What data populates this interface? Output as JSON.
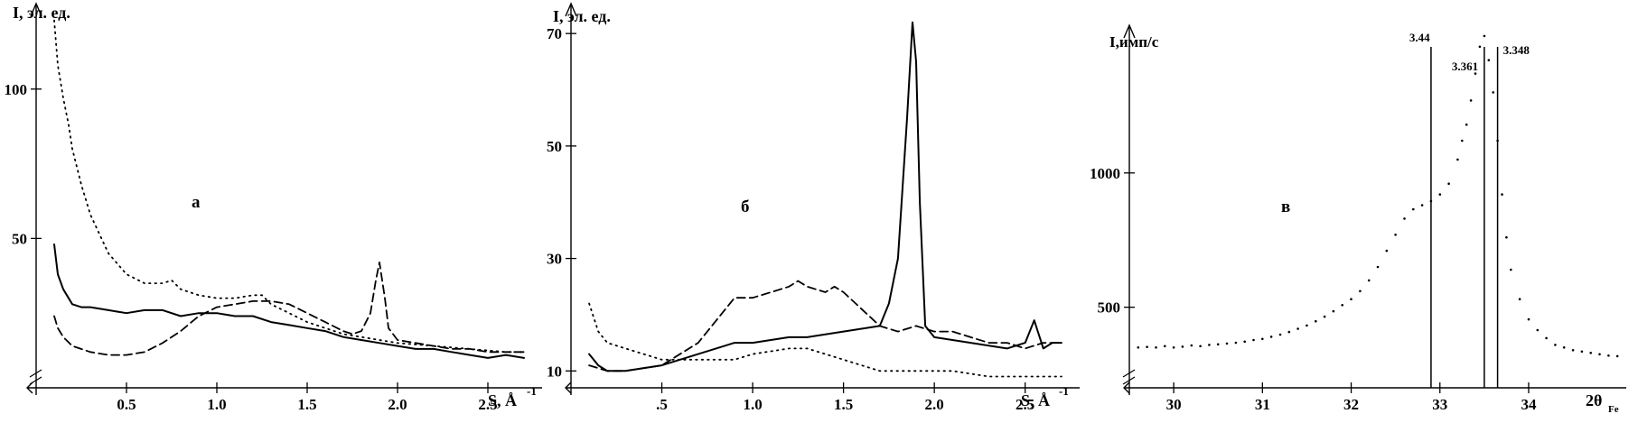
{
  "chart_data": [
    {
      "type": "line",
      "panel_label": "а",
      "ylabel": "I, эл. ед.",
      "xlabel": "S, Å",
      "xlabel_sup": "-1",
      "xlim": [
        0,
        2.8
      ],
      "ylim": [
        0,
        128
      ],
      "xticks": [
        0.5,
        1.0,
        1.5,
        2.0,
        2.5
      ],
      "xtick_labels": [
        "0.5",
        "1.0",
        "1.5",
        "2.0",
        "2.5"
      ],
      "yticks": [
        50,
        100
      ],
      "ytick_labels": [
        "50",
        "100"
      ],
      "series": [
        {
          "style": "solid",
          "x": [
            0.1,
            0.12,
            0.15,
            0.2,
            0.25,
            0.3,
            0.4,
            0.5,
            0.6,
            0.7,
            0.8,
            0.9,
            1.0,
            1.1,
            1.2,
            1.3,
            1.4,
            1.5,
            1.6,
            1.7,
            1.8,
            1.9,
            2.0,
            2.1,
            2.2,
            2.3,
            2.4,
            2.5,
            2.6,
            2.7
          ],
          "y": [
            48,
            38,
            33,
            28,
            27,
            27,
            26,
            25,
            26,
            26,
            24,
            25,
            25,
            24,
            24,
            22,
            21,
            20,
            19,
            17,
            16,
            15,
            14,
            13,
            13,
            12,
            11,
            10,
            11,
            10
          ]
        },
        {
          "style": "dashed",
          "x": [
            0.1,
            0.12,
            0.15,
            0.2,
            0.3,
            0.4,
            0.5,
            0.6,
            0.7,
            0.8,
            0.9,
            1.0,
            1.1,
            1.2,
            1.3,
            1.4,
            1.5,
            1.6,
            1.7,
            1.75,
            1.8,
            1.85,
            1.88,
            1.9,
            1.93,
            1.95,
            2.0,
            2.1,
            2.2,
            2.3,
            2.4,
            2.5,
            2.6,
            2.7
          ],
          "y": [
            24,
            20,
            17,
            14,
            12,
            11,
            11,
            12,
            15,
            19,
            24,
            27,
            28,
            29,
            29,
            28,
            25,
            22,
            19,
            18,
            19,
            25,
            36,
            42,
            30,
            20,
            16,
            15,
            14,
            13,
            13,
            12,
            12,
            12
          ]
        },
        {
          "style": "dotted",
          "x": [
            0.1,
            0.12,
            0.15,
            0.18,
            0.2,
            0.25,
            0.3,
            0.4,
            0.5,
            0.6,
            0.7,
            0.75,
            0.8,
            0.9,
            1.0,
            1.1,
            1.2,
            1.25,
            1.3,
            1.4,
            1.5,
            1.6,
            1.7,
            1.8,
            1.9,
            2.0,
            2.2,
            2.4,
            2.6,
            2.7
          ],
          "y": [
            123,
            108,
            97,
            88,
            80,
            68,
            58,
            45,
            38,
            35,
            35,
            36,
            33,
            31,
            30,
            30,
            31,
            31,
            28,
            25,
            22,
            20,
            18,
            17,
            16,
            15,
            14,
            13,
            12,
            12
          ]
        }
      ]
    },
    {
      "type": "line",
      "panel_label": "б",
      "ylabel": "I, эл. ед.",
      "xlabel": "S, Å",
      "xlabel_sup": "-1",
      "xlim": [
        0,
        2.8
      ],
      "ylim": [
        7,
        75
      ],
      "xticks": [
        0.5,
        1.0,
        1.5,
        2.0,
        2.5
      ],
      "xtick_labels": [
        ".5",
        "1.0",
        "1.5",
        "2.0",
        "2.5"
      ],
      "yticks": [
        10,
        30,
        50,
        70
      ],
      "ytick_labels": [
        "10",
        "30",
        "50",
        "70"
      ],
      "series": [
        {
          "style": "solid",
          "x": [
            0.1,
            0.15,
            0.2,
            0.3,
            0.5,
            0.7,
            0.9,
            1.0,
            1.2,
            1.3,
            1.5,
            1.7,
            1.75,
            1.8,
            1.85,
            1.88,
            1.9,
            1.92,
            1.95,
            2.0,
            2.2,
            2.4,
            2.5,
            2.55,
            2.6,
            2.65,
            2.7
          ],
          "y": [
            13,
            11,
            10,
            10,
            11,
            13,
            15,
            15,
            16,
            16,
            17,
            18,
            22,
            30,
            55,
            72,
            65,
            40,
            18,
            16,
            15,
            14,
            15,
            19,
            14,
            15,
            15
          ]
        },
        {
          "style": "dashed",
          "x": [
            0.1,
            0.2,
            0.3,
            0.5,
            0.7,
            0.8,
            0.9,
            1.0,
            1.1,
            1.2,
            1.25,
            1.3,
            1.4,
            1.45,
            1.5,
            1.6,
            1.7,
            1.8,
            1.9,
            2.0,
            2.1,
            2.2,
            2.3,
            2.4,
            2.5,
            2.6,
            2.7
          ],
          "y": [
            11,
            10,
            10,
            11,
            15,
            19,
            23,
            23,
            24,
            25,
            26,
            25,
            24,
            25,
            24,
            21,
            18,
            17,
            18,
            17,
            17,
            16,
            15,
            15,
            14,
            15,
            15
          ]
        },
        {
          "style": "dotted",
          "x": [
            0.1,
            0.15,
            0.2,
            0.3,
            0.5,
            0.7,
            0.9,
            1.0,
            1.2,
            1.3,
            1.4,
            1.5,
            1.6,
            1.7,
            1.9,
            2.1,
            2.3,
            2.5,
            2.7
          ],
          "y": [
            22,
            17,
            15,
            14,
            12,
            12,
            12,
            13,
            14,
            14,
            13,
            12,
            11,
            10,
            10,
            10,
            9,
            9,
            9
          ]
        }
      ]
    },
    {
      "type": "scatter",
      "panel_label": "в",
      "ylabel": "I,имп/с",
      "xlabel": "2θ",
      "xlabel_sub": "Fe",
      "xlim": [
        29.5,
        35.1
      ],
      "ylim": [
        200,
        1550
      ],
      "xticks": [
        30,
        31,
        32,
        33,
        34
      ],
      "xtick_labels": [
        "30",
        "31",
        "32",
        "33",
        "34"
      ],
      "yticks": [
        500,
        1000
      ],
      "ytick_labels": [
        "500",
        "1000"
      ],
      "points_x": [
        29.6,
        29.7,
        29.8,
        29.9,
        30.0,
        30.1,
        30.2,
        30.3,
        30.4,
        30.5,
        30.6,
        30.7,
        30.8,
        30.9,
        31.0,
        31.1,
        31.2,
        31.3,
        31.4,
        31.5,
        31.6,
        31.7,
        31.8,
        31.9,
        32.0,
        32.1,
        32.2,
        32.3,
        32.4,
        32.5,
        32.6,
        32.7,
        32.8,
        32.9,
        33.0,
        33.1,
        33.2,
        33.25,
        33.3,
        33.35,
        33.4,
        33.45,
        33.5,
        33.55,
        33.6,
        33.65,
        33.7,
        33.75,
        33.8,
        33.9,
        34.0,
        34.1,
        34.2,
        34.3,
        34.4,
        34.5,
        34.6,
        34.7,
        34.8,
        34.9,
        35.0
      ],
      "points_y": [
        350,
        352,
        350,
        355,
        350,
        353,
        358,
        355,
        360,
        362,
        365,
        368,
        372,
        378,
        382,
        390,
        398,
        408,
        420,
        432,
        448,
        465,
        485,
        508,
        530,
        560,
        600,
        650,
        710,
        770,
        830,
        865,
        880,
        895,
        920,
        960,
        1050,
        1120,
        1180,
        1270,
        1370,
        1470,
        1510,
        1420,
        1300,
        1120,
        920,
        760,
        640,
        530,
        455,
        415,
        385,
        360,
        350,
        340,
        335,
        330,
        325,
        320,
        318
      ]
    }
  ],
  "reflections": [
    {
      "label": "3.44",
      "x": 32.9
    },
    {
      "label": "3.361",
      "x": 33.5
    },
    {
      "label": "3.348",
      "x": 33.65
    }
  ]
}
